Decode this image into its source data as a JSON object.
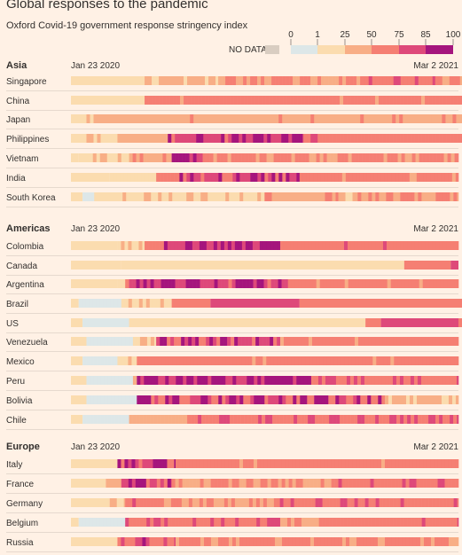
{
  "title": "Global responses to the pandemic",
  "subtitle": "Oxford Covid-19 government response stringency index",
  "legend": {
    "no_data_label": "NO DATA",
    "no_data_color": "#d9cdc1",
    "ticks": [
      "0",
      "1",
      "25",
      "50",
      "75",
      "85",
      "100"
    ],
    "colors": [
      "#dde7e8",
      "#fbdcaf",
      "#f8ae86",
      "#f57f73",
      "#de497a",
      "#a5157d"
    ]
  },
  "chart_data": {
    "type": "heatmap",
    "start_label": "Jan 23 2020",
    "end_label": "Mar 2 2021",
    "scale_breaks": [
      1,
      25,
      50,
      75,
      85
    ],
    "regions": [
      {
        "name": "Asia",
        "countries": [
          {
            "name": "Singapore",
            "segments": [
              [
                0.18,
                0.19
              ],
              [
                30,
                0.19
              ],
              [
                50,
                0.37
              ],
              [
                70,
                0.19
              ],
              [
                52,
                0.81
              ],
              [
                55,
                0.19
              ],
              [
                45,
                0.63
              ],
              [
                60,
                0.19
              ],
              [
                65,
                0.09
              ],
              [
                50,
                0.44
              ],
              [
                60,
                0.04
              ]
            ]
          },
          {
            "name": "China",
            "segments": [
              [
                0.15,
                0.19
              ],
              [
                60,
                0.81
              ],
              [
                70,
                0.02
              ]
            ]
          },
          {
            "name": "Japan",
            "segments": [
              [
                0.07,
                0.04
              ],
              [
                30,
                0.02
              ],
              [
                40,
                0.87
              ],
              [
                45,
                0.07
              ],
              [
                50,
                0.04
              ]
            ]
          },
          {
            "name": "Philippines",
            "segments": [
              [
                0.12,
                0.04
              ],
              [
                25,
                0.08
              ],
              [
                35,
                0.13
              ],
              [
                85,
                0.35
              ],
              [
                70,
                0.04
              ],
              [
                65,
                0.44
              ]
            ]
          },
          {
            "name": "Vietnam",
            "segments": [
              [
                0.15,
                0.02
              ],
              [
                20,
                0.13
              ],
              [
                45,
                0.05
              ],
              [
                40,
                0.06
              ],
              [
                87,
                0.08
              ],
              [
                55,
                0.66
              ]
            ]
          },
          {
            "name": "India",
            "segments": [
              [
                0.14,
                0.1
              ],
              [
                10,
                0.12
              ],
              [
                65,
                0.06
              ],
              [
                80,
                0.31
              ],
              [
                60,
                0.41
              ]
            ]
          },
          {
            "name": "South Korea",
            "segments": [
              [
                0.12,
                0.03
              ],
              [
                0,
                0.03
              ],
              [
                20,
                0.44
              ],
              [
                45,
                0.19
              ],
              [
                30,
                0.05
              ],
              [
                45,
                0.26
              ]
            ]
          }
        ]
      },
      {
        "name": "Americas",
        "countries": [
          {
            "name": "Colombia",
            "segments": [
              [
                0.25,
                0.12
              ],
              [
                20,
                0.07
              ],
              [
                60,
                0.05
              ],
              [
                85,
                0.3
              ],
              [
                65,
                0.46
              ]
            ]
          },
          {
            "name": "Canada",
            "segments": [
              [
                0.2,
                0.13
              ],
              [
                20,
                0.73
              ],
              [
                70,
                0.12
              ],
              [
                75,
                0.02
              ]
            ]
          },
          {
            "name": "Argentina",
            "segments": [
              [
                0.18,
                0.12
              ],
              [
                15,
                0.02
              ],
              [
                60,
                0.01
              ],
              [
                85,
                0.41
              ],
              [
                60,
                0.44
              ]
            ]
          },
          {
            "name": "Brazil",
            "segments": [
              [
                0.23,
                0.02
              ],
              [
                0,
                0.11
              ],
              [
                20,
                0.13
              ],
              [
                70,
                0.1
              ],
              [
                80,
                0.23
              ],
              [
                70,
                0.45
              ],
              [
                0,
                0.07
              ],
              [
                70,
                0.02
              ]
            ]
          },
          {
            "name": "US",
            "segments": [
              [
                0.17,
                0.03
              ],
              [
                0,
                0.12
              ],
              [
                20,
                0.61
              ],
              [
                70,
                0.04
              ],
              [
                75,
                0.2
              ],
              [
                70,
                0.01
              ],
              [
                70,
                0.01
              ]
            ]
          },
          {
            "name": "Venezuela",
            "segments": [
              [
                0.19,
                0.04
              ],
              [
                0,
                0.12
              ],
              [
                20,
                0.06
              ],
              [
                80,
                0.32
              ],
              [
                60,
                0.46
              ]
            ]
          },
          {
            "name": "Mexico",
            "segments": [
              [
                0.17,
                0.03
              ],
              [
                0,
                0.09
              ],
              [
                20,
                0.05
              ],
              [
                60,
                0.27
              ],
              [
                60,
                0.56
              ]
            ]
          },
          {
            "name": "Peru",
            "segments": [
              [
                0.22,
                0.04
              ],
              [
                0,
                0.12
              ],
              [
                20,
                0.01
              ],
              [
                88,
                0.45
              ],
              [
                70,
                0.38
              ]
            ]
          },
          {
            "name": "Bolivia",
            "segments": [
              [
                0.16,
                0.04
              ],
              [
                0,
                0.13
              ],
              [
                80,
                0.64
              ],
              [
                30,
                0.19
              ]
            ]
          },
          {
            "name": "Chile",
            "segments": [
              [
                0.2,
                0.03
              ],
              [
                0,
                0.12
              ],
              [
                40,
                0.15
              ],
              [
                70,
                0.7
              ]
            ]
          }
        ]
      },
      {
        "name": "Europe",
        "countries": [
          {
            "name": "Italy",
            "segments": [
              [
                0.14,
                0.12
              ],
              [
                80,
                0.15
              ],
              [
                60,
                0.73
              ]
            ]
          },
          {
            "name": "France",
            "segments": [
              [
                0.21,
                0.09
              ],
              [
                40,
                0.04
              ],
              [
                80,
                0.13
              ],
              [
                50,
                0.43
              ],
              [
                70,
                0.31
              ]
            ]
          },
          {
            "name": "Germany",
            "segments": [
              [
                0.15,
                0.1
              ],
              [
                30,
                0.04
              ],
              [
                70,
                0.1
              ],
              [
                50,
                0.29
              ],
              [
                70,
                0.47
              ]
            ]
          },
          {
            "name": "Belgium",
            "segments": [
              [
                0.12,
                0.02
              ],
              [
                0,
                0.12
              ],
              [
                70,
                0.4
              ],
              [
                45,
                0.1
              ],
              [
                65,
                0.36
              ]
            ]
          },
          {
            "name": "Russia",
            "segments": [
              [
                0.2,
                0.12
              ],
              [
                75,
                0.15
              ],
              [
                55,
                0.73
              ]
            ]
          }
        ]
      }
    ]
  }
}
